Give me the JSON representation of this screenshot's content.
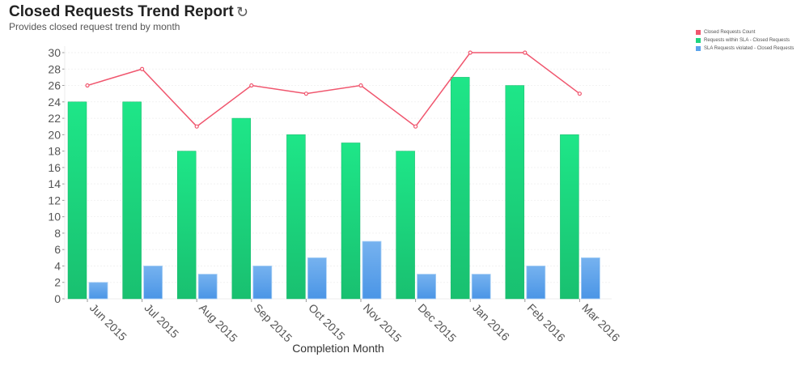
{
  "header": {
    "title": "Closed Requests Trend Report",
    "subtitle": "Provides closed request trend by month",
    "refresh_icon": "refresh-icon"
  },
  "chart_data": {
    "type": "bar",
    "title": "Closed Requests Trend Report",
    "xlabel": "Completion Month",
    "ylabel": "",
    "ylim": [
      0,
      30
    ],
    "yticks": [
      0,
      2,
      4,
      6,
      8,
      10,
      12,
      14,
      16,
      18,
      20,
      22,
      24,
      26,
      28,
      30
    ],
    "categories": [
      "Jun 2015",
      "Jul 2015",
      "Aug 2015",
      "Sep 2015",
      "Oct 2015",
      "Nov 2015",
      "Dec 2015",
      "Jan 2016",
      "Feb 2016",
      "Mar 2016"
    ],
    "legend_position": "top-right",
    "series": [
      {
        "name": "Closed Requests Count",
        "kind": "line",
        "color": "#f0566e",
        "values": [
          26,
          28,
          21,
          26,
          25,
          26,
          21,
          30,
          30,
          25
        ]
      },
      {
        "name": "Requests within SLA - Closed Requests",
        "kind": "bar",
        "color": "#1dd47f",
        "values": [
          24,
          24,
          18,
          22,
          20,
          19,
          18,
          27,
          26,
          20
        ]
      },
      {
        "name": "SLA Requests violated - Closed Requests",
        "kind": "bar",
        "color": "#5aa3ec",
        "values": [
          2,
          4,
          3,
          4,
          5,
          7,
          3,
          3,
          4,
          5
        ]
      }
    ]
  }
}
